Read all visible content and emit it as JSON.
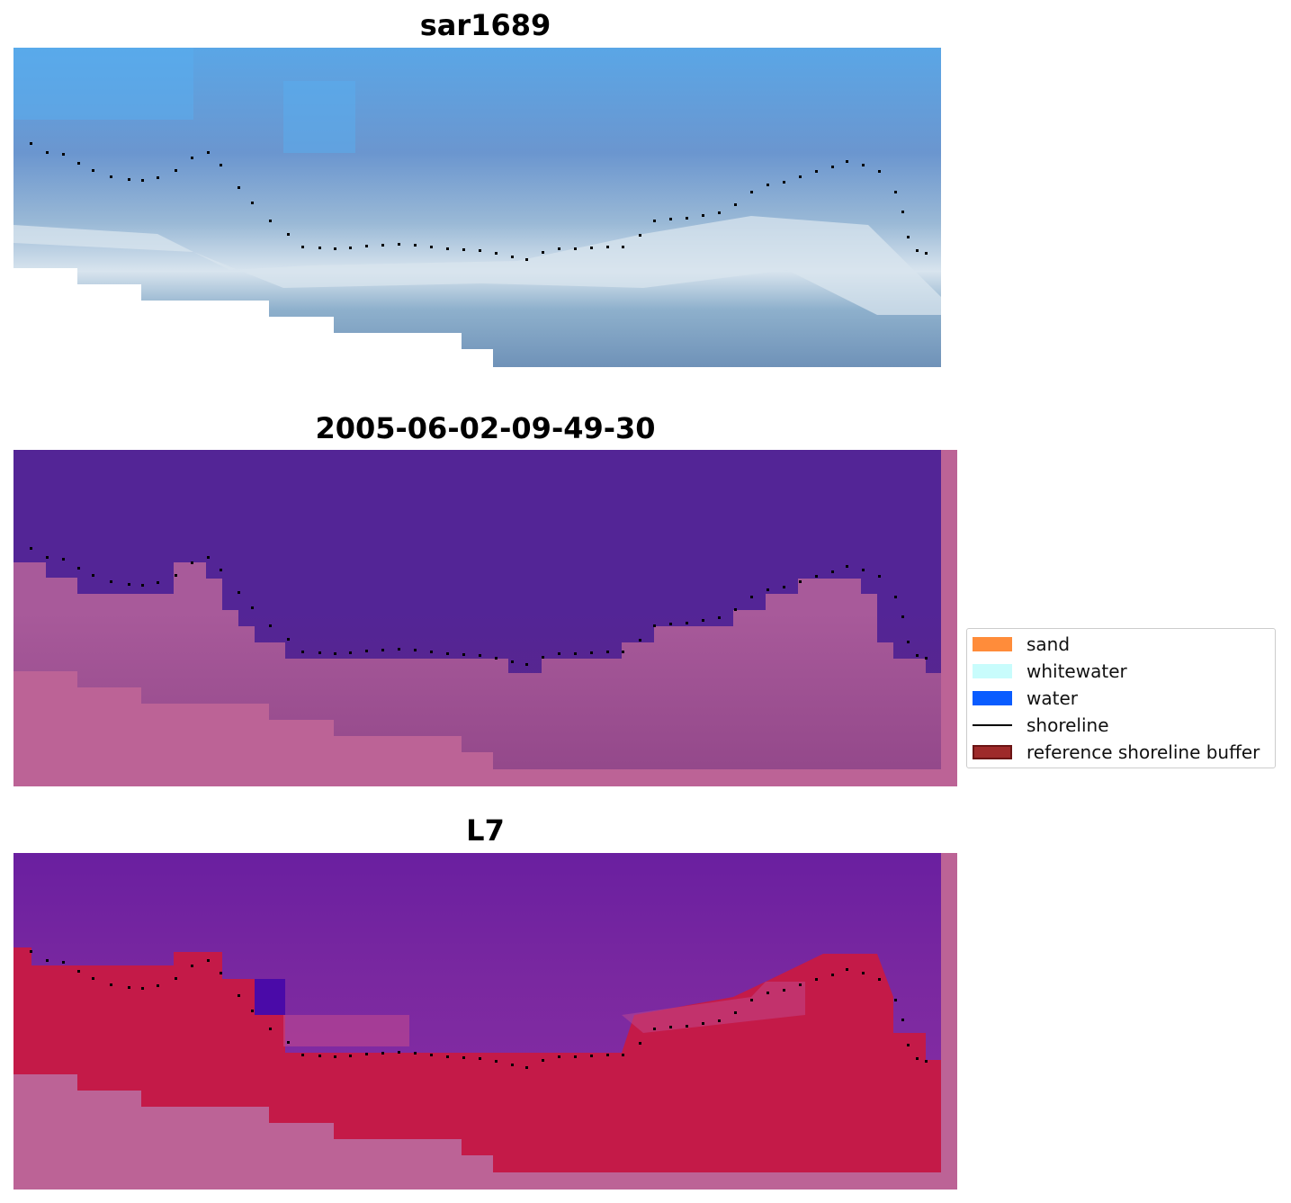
{
  "panels": [
    {
      "title": "sar1689",
      "kind": "rgb"
    },
    {
      "title": "2005-06-02-09-49-30",
      "kind": "classified"
    },
    {
      "title": "L7",
      "kind": "ndwi"
    }
  ],
  "legend": {
    "items": [
      {
        "label": "sand",
        "color": "#ff8c3a",
        "kind": "patch"
      },
      {
        "label": "whitewater",
        "color": "#c8fcfc",
        "kind": "patch"
      },
      {
        "label": "water",
        "color": "#0a5cff",
        "kind": "patch"
      },
      {
        "label": "shoreline",
        "color": "#000000",
        "kind": "line"
      },
      {
        "label": "reference shoreline buffer",
        "color": "#9e2a2a",
        "kind": "patch-bordered"
      }
    ]
  },
  "colors": {
    "sar_water": "#5a7fc4",
    "sar_shallow": "#5aa8e0",
    "sar_whitewater": "#d8e4ee",
    "sar_deep": "#6f92b8",
    "classified_water": "#532596",
    "classified_buffer": "#a85a9a",
    "nodata_pink": "#bc6396",
    "ndwi_water": "#7a24a0",
    "ndwi_land": "#c41a48",
    "shoreline_dots": "#000000"
  }
}
